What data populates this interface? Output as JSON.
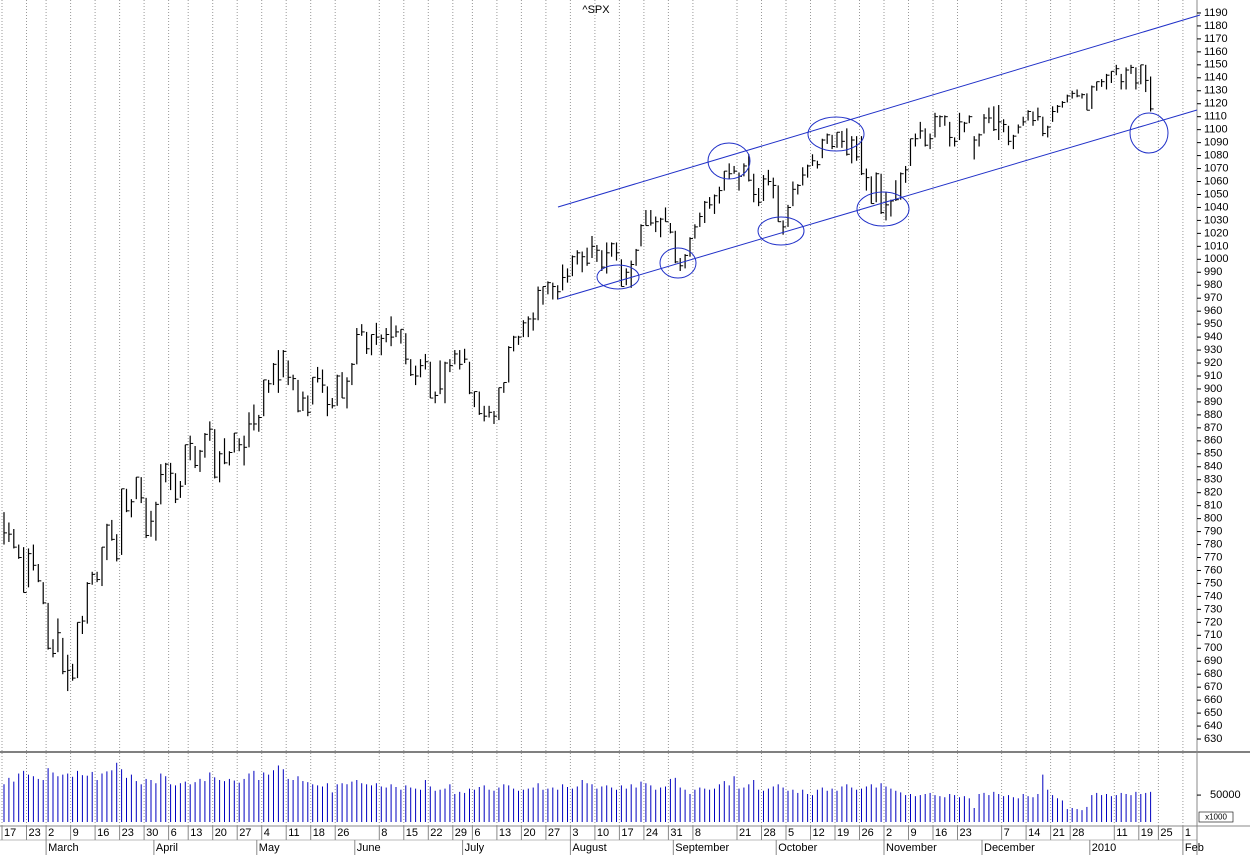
{
  "chart_data": {
    "type": "ohlc",
    "title": "^SPX",
    "categories": [
      "17",
      null,
      null,
      null,
      null,
      "23",
      null,
      null,
      null,
      "2",
      null,
      null,
      null,
      null,
      "9",
      null,
      null,
      null,
      null,
      "16",
      null,
      null,
      null,
      null,
      "23",
      null,
      null,
      null,
      null,
      "30",
      null,
      null,
      null,
      null,
      "6",
      null,
      null,
      null,
      "13",
      null,
      null,
      null,
      null,
      "20",
      null,
      null,
      null,
      null,
      "27",
      null,
      null,
      null,
      null,
      "4",
      null,
      null,
      null,
      null,
      "11",
      null,
      null,
      null,
      null,
      "18",
      null,
      null,
      null,
      null,
      "26",
      null,
      null,
      null,
      null,
      null,
      null,
      null,
      null,
      "8",
      null,
      null,
      null,
      null,
      "15",
      null,
      null,
      null,
      null,
      "22",
      null,
      null,
      null,
      null,
      "29",
      null,
      null,
      null,
      "6",
      null,
      null,
      null,
      null,
      "13",
      null,
      null,
      null,
      null,
      "20",
      null,
      null,
      null,
      null,
      "27",
      null,
      null,
      null,
      null,
      "3",
      null,
      null,
      null,
      null,
      "10",
      null,
      null,
      null,
      null,
      "17",
      null,
      null,
      null,
      null,
      "24",
      null,
      null,
      null,
      null,
      "31",
      null,
      null,
      null,
      null,
      "8",
      null,
      null,
      null,
      null,
      null,
      null,
      null,
      null,
      "21",
      null,
      null,
      null,
      null,
      "28",
      null,
      null,
      null,
      null,
      "5",
      null,
      null,
      null,
      null,
      "12",
      null,
      null,
      null,
      null,
      "19",
      null,
      null,
      null,
      null,
      "26",
      null,
      null,
      null,
      null,
      "2",
      null,
      null,
      null,
      null,
      "9",
      null,
      null,
      null,
      null,
      "16",
      null,
      null,
      null,
      null,
      "23",
      null,
      null,
      null,
      null,
      null,
      null,
      null,
      null,
      "7",
      null,
      null,
      null,
      null,
      "14",
      null,
      null,
      null,
      null,
      "21",
      null,
      null,
      null,
      "28",
      null,
      null,
      null,
      null,
      null,
      null,
      null,
      null,
      "11",
      null,
      null,
      null,
      null,
      "19",
      null,
      null,
      null,
      "25",
      null,
      null,
      null,
      null,
      "1"
    ],
    "months": [
      null,
      null,
      null,
      null,
      null,
      null,
      null,
      null,
      null,
      "March",
      null,
      null,
      null,
      null,
      null,
      null,
      null,
      null,
      null,
      null,
      null,
      null,
      null,
      null,
      null,
      null,
      null,
      null,
      null,
      null,
      null,
      "April",
      null,
      null,
      null,
      null,
      null,
      null,
      null,
      null,
      null,
      null,
      null,
      null,
      null,
      null,
      null,
      null,
      null,
      null,
      null,
      null,
      "May",
      null,
      null,
      null,
      null,
      null,
      null,
      null,
      null,
      null,
      null,
      null,
      null,
      null,
      null,
      null,
      null,
      null,
      null,
      null,
      "June",
      null,
      null,
      null,
      null,
      null,
      null,
      null,
      null,
      null,
      null,
      null,
      null,
      null,
      null,
      null,
      null,
      null,
      null,
      null,
      null,
      null,
      "July",
      null,
      null,
      null,
      null,
      null,
      null,
      null,
      null,
      null,
      null,
      null,
      null,
      null,
      null,
      null,
      null,
      null,
      null,
      null,
      null,
      null,
      "August",
      null,
      null,
      null,
      null,
      null,
      null,
      null,
      null,
      null,
      null,
      null,
      null,
      null,
      null,
      null,
      null,
      null,
      null,
      null,
      null,
      "September",
      null,
      null,
      null,
      null,
      null,
      null,
      null,
      null,
      null,
      null,
      null,
      null,
      null,
      null,
      null,
      null,
      null,
      null,
      null,
      null,
      "October",
      null,
      null,
      null,
      null,
      null,
      null,
      null,
      null,
      null,
      null,
      null,
      null,
      null,
      null,
      null,
      null,
      null,
      null,
      null,
      null,
      null,
      "November",
      null,
      null,
      null,
      null,
      null,
      null,
      null,
      null,
      null,
      null,
      null,
      null,
      null,
      null,
      null,
      null,
      null,
      null,
      null,
      "December",
      null,
      null,
      null,
      null,
      null,
      null,
      null,
      null,
      null,
      null,
      null,
      null,
      null,
      null,
      null,
      null,
      null,
      null,
      null,
      null,
      null,
      "2010",
      null,
      null,
      null,
      null,
      null,
      null,
      null,
      null,
      null,
      null,
      null,
      null,
      null,
      null,
      null,
      null,
      null,
      null,
      "Feb"
    ],
    "high": [
      805,
      797,
      792,
      780,
      778,
      777,
      780,
      765,
      751,
      735,
      707,
      723,
      708,
      695,
      688,
      720,
      725,
      751,
      759,
      759,
      778,
      796,
      799,
      788,
      823,
      823,
      815,
      832,
      832,
      816,
      806,
      813,
      842,
      843,
      843,
      835,
      829,
      857,
      864,
      856,
      853,
      866,
      875,
      869,
      852,
      862,
      852,
      866,
      862,
      864,
      882,
      888,
      880,
      907,
      907,
      920,
      930,
      930,
      922,
      911,
      907,
      898,
      895,
      909,
      917,
      915,
      902,
      893,
      911,
      913,
      909,
      920,
      947,
      950,
      944,
      942,
      951,
      942,
      947,
      956,
      949,
      946,
      943,
      923,
      918,
      923,
      927,
      921,
      898,
      922,
      921,
      923,
      930,
      930,
      931,
      921,
      898,
      898,
      887,
      887,
      883,
      901,
      905,
      933,
      941,
      941,
      953,
      956,
      959,
      979,
      979,
      983,
      982,
      980,
      996,
      993,
      1003,
      1007,
      1006,
      1009,
      1018,
      1011,
      1007,
      1013,
      1013,
      1013,
      1000,
      993,
      999,
      1008,
      1027,
      1038,
      1038,
      1033,
      1032,
      1040,
      1028,
      1022,
      1001,
      1004,
      1017,
      1027,
      1036,
      1045,
      1048,
      1050,
      1056,
      1068,
      1074,
      1072,
      1067,
      1074,
      1081,
      1066,
      1055,
      1065,
      1069,
      1063,
      1057,
      1030,
      1042,
      1060,
      1058,
      1071,
      1073,
      1081,
      1076,
      1093,
      1097,
      1096,
      1098,
      1099,
      1101,
      1095,
      1095,
      1095,
      1070,
      1064,
      1067,
      1066,
      1052,
      1046,
      1061,
      1067,
      1072,
      1093,
      1097,
      1106,
      1101,
      1097,
      1113,
      1111,
      1111,
      1106,
      1094,
      1113,
      1106,
      1111,
      1095,
      1097,
      1112,
      1117,
      1118,
      1119,
      1108,
      1103,
      1096,
      1104,
      1110,
      1115,
      1114,
      1117,
      1110,
      1103,
      1118,
      1119,
      1122,
      1127,
      1130,
      1131,
      1128,
      1128,
      1134,
      1137,
      1139,
      1143,
      1145,
      1150,
      1143,
      1148,
      1150,
      1148,
      1150,
      1150,
      1141,
      null,
      null,
      null,
      null,
      null,
      null,
      null
    ],
    "low": [
      780,
      782,
      777,
      769,
      743,
      747,
      760,
      751,
      734,
      699,
      693,
      697,
      680,
      667,
      675,
      677,
      711,
      719,
      749,
      751,
      748,
      768,
      783,
      767,
      772,
      805,
      801,
      815,
      812,
      785,
      786,
      783,
      811,
      828,
      822,
      812,
      816,
      826,
      845,
      839,
      836,
      847,
      860,
      831,
      828,
      842,
      841,
      851,
      852,
      841,
      855,
      868,
      867,
      879,
      897,
      903,
      897,
      909,
      903,
      899,
      882,
      883,
      879,
      888,
      905,
      897,
      879,
      885,
      887,
      893,
      885,
      903,
      919,
      941,
      927,
      926,
      934,
      926,
      936,
      933,
      940,
      935,
      919,
      910,
      903,
      909,
      915,
      893,
      889,
      896,
      889,
      913,
      919,
      915,
      920,
      896,
      886,
      880,
      875,
      878,
      873,
      876,
      897,
      905,
      929,
      934,
      940,
      940,
      945,
      953,
      965,
      973,
      969,
      969,
      976,
      982,
      987,
      996,
      990,
      995,
      1001,
      998,
      991,
      989,
      1002,
      999,
      979,
      980,
      978,
      995,
      1010,
      1026,
      1026,
      1021,
      1017,
      1029,
      1020,
      997,
      991,
      993,
      1002,
      1016,
      1025,
      1028,
      1039,
      1035,
      1043,
      1053,
      1062,
      1066,
      1053,
      1064,
      1060,
      1044,
      1041,
      1045,
      1057,
      1047,
      1029,
      1019,
      1025,
      1041,
      1050,
      1057,
      1063,
      1072,
      1070,
      1078,
      1089,
      1085,
      1086,
      1086,
      1080,
      1074,
      1076,
      1065,
      1053,
      1043,
      1044,
      1035,
      1030,
      1033,
      1045,
      1046,
      1059,
      1072,
      1087,
      1093,
      1087,
      1085,
      1094,
      1102,
      1103,
      1087,
      1087,
      1092,
      1098,
      1105,
      1077,
      1087,
      1097,
      1105,
      1099,
      1092,
      1098,
      1088,
      1085,
      1097,
      1103,
      1107,
      1103,
      1107,
      1095,
      1094,
      1106,
      1113,
      1117,
      1121,
      1124,
      1125,
      1124,
      1115,
      1116,
      1130,
      1133,
      1131,
      1136,
      1142,
      1131,
      1131,
      1143,
      1131,
      1135,
      1129,
      1114,
      null,
      null,
      null,
      null,
      null,
      null,
      null
    ],
    "close": [
      789,
      788,
      778,
      770,
      743,
      773,
      764,
      752,
      735,
      700,
      696,
      712,
      682,
      683,
      677,
      720,
      721,
      750,
      757,
      753,
      778,
      795,
      784,
      769,
      823,
      806,
      813,
      832,
      816,
      787,
      798,
      811,
      834,
      842,
      835,
      815,
      825,
      857,
      858,
      841,
      852,
      865,
      869,
      832,
      850,
      843,
      851,
      866,
      857,
      855,
      873,
      873,
      878,
      907,
      904,
      919,
      907,
      929,
      909,
      908,
      883,
      893,
      882,
      909,
      908,
      903,
      888,
      887,
      910,
      893,
      906,
      919,
      942,
      944,
      931,
      942,
      940,
      939,
      942,
      940,
      944,
      946,
      923,
      911,
      910,
      918,
      921,
      893,
      895,
      900,
      920,
      918,
      927,
      919,
      923,
      897,
      898,
      881,
      879,
      882,
      879,
      901,
      905,
      932,
      940,
      940,
      951,
      954,
      954,
      976,
      979,
      982,
      979,
      975,
      986,
      987,
      1002,
      1005,
      1002,
      997,
      1010,
      1007,
      994,
      1005,
      1012,
      1005,
      979,
      990,
      996,
      1007,
      1026,
      1026,
      1028,
      1029,
      1031,
      1029,
      1021,
      998,
      995,
      1003,
      1016,
      1025,
      1033,
      1044,
      1042,
      1049,
      1053,
      1068,
      1066,
      1068,
      1064,
      1072,
      1061,
      1050,
      1044,
      1062,
      1060,
      1057,
      1029,
      1025,
      1040,
      1054,
      1057,
      1065,
      1072,
      1076,
      1073,
      1092,
      1096,
      1087,
      1098,
      1091,
      1081,
      1092,
      1079,
      1066,
      1063,
      1043,
      1066,
      1036,
      1042,
      1045,
      1046,
      1066,
      1069,
      1093,
      1093,
      1099,
      1088,
      1093,
      1110,
      1110,
      1110,
      1094,
      1091,
      1106,
      1105,
      1110,
      1092,
      1096,
      1109,
      1109,
      1100,
      1106,
      1104,
      1091,
      1095,
      1102,
      1106,
      1114,
      1107,
      1110,
      1097,
      1102,
      1114,
      1118,
      1121,
      1126,
      1128,
      1126,
      1127,
      1115,
      1133,
      1137,
      1137,
      1142,
      1145,
      1147,
      1137,
      1146,
      1148,
      1136,
      1150,
      1138,
      1116,
      null,
      null,
      null,
      null,
      null,
      null,
      null
    ],
    "color": "#000000",
    "ylim": [
      620,
      1200
    ],
    "yticks": [
      630,
      640,
      650,
      660,
      670,
      680,
      690,
      700,
      710,
      720,
      730,
      740,
      750,
      760,
      770,
      780,
      790,
      800,
      810,
      820,
      830,
      840,
      850,
      860,
      870,
      880,
      890,
      900,
      910,
      920,
      930,
      940,
      950,
      960,
      970,
      980,
      990,
      1000,
      1010,
      1020,
      1030,
      1040,
      1050,
      1060,
      1070,
      1080,
      1090,
      1100,
      1110,
      1120,
      1130,
      1140,
      1150,
      1160,
      1170,
      1180,
      1190
    ],
    "grid": true,
    "volume": {
      "color": "#0000c0",
      "unit_label": "x1000",
      "ylim": [
        0,
        130000
      ],
      "yticks": [
        50000
      ],
      "values": [
        70000,
        82000,
        75000,
        90000,
        95000,
        88000,
        85000,
        80000,
        78000,
        100000,
        92000,
        85000,
        88000,
        90000,
        84000,
        95000,
        87000,
        86000,
        93000,
        78000,
        90000,
        94000,
        96000,
        110000,
        98000,
        82000,
        88000,
        76000,
        70000,
        80000,
        78000,
        72000,
        90000,
        85000,
        70000,
        68000,
        72000,
        75000,
        70000,
        74000,
        80000,
        76000,
        92000,
        83000,
        78000,
        76000,
        80000,
        77000,
        73000,
        80000,
        90000,
        95000,
        78000,
        92000,
        88000,
        96000,
        105000,
        98000,
        80000,
        78000,
        85000,
        76000,
        74000,
        70000,
        68000,
        66000,
        72000,
        55000,
        70000,
        72000,
        70000,
        75000,
        78000,
        72000,
        70000,
        68000,
        72000,
        66000,
        64000,
        70000,
        65000,
        60000,
        68000,
        64000,
        62000,
        60000,
        78000,
        66000,
        58000,
        60000,
        62000,
        70000,
        52000,
        56000,
        54000,
        62000,
        60000,
        65000,
        68000,
        60000,
        58000,
        64000,
        70000,
        68000,
        62000,
        58000,
        60000,
        62000,
        64000,
        72000,
        60000,
        62000,
        64000,
        60000,
        70000,
        65000,
        62000,
        66000,
        78000,
        72000,
        70000,
        62000,
        66000,
        68000,
        64000,
        60000,
        68000,
        62000,
        70000,
        64000,
        75000,
        72000,
        68000,
        60000,
        64000,
        66000,
        80000,
        82000,
        64000,
        60000,
        52000,
        60000,
        64000,
        62000,
        60000,
        62000,
        70000,
        76000,
        68000,
        85000,
        62000,
        64000,
        70000,
        78000,
        60000,
        58000,
        62000,
        66000,
        70000,
        64000,
        58000,
        60000,
        54000,
        60000,
        52000,
        50000,
        60000,
        64000,
        58000,
        62000,
        58000,
        66000,
        70000,
        64000,
        60000,
        62000,
        66000,
        70000,
        64000,
        72000,
        66000,
        62000,
        58000,
        55000,
        50000,
        52000,
        48000,
        50000,
        52000,
        54000,
        50000,
        48000,
        46000,
        52000,
        50000,
        46000,
        48000,
        44000,
        26000,
        52000,
        54000,
        50000,
        56000,
        52000,
        48000,
        50000,
        46000,
        44000,
        52000,
        48000,
        46000,
        52000,
        88000,
        60000,
        50000,
        44000,
        40000,
        24000,
        26000,
        24000,
        22000,
        28000,
        50000,
        54000,
        50000,
        52000,
        48000,
        50000,
        54000,
        52000,
        50000,
        56000,
        52000,
        54000,
        56000,
        null,
        null,
        null,
        null,
        null,
        null,
        null
      ]
    }
  }
}
